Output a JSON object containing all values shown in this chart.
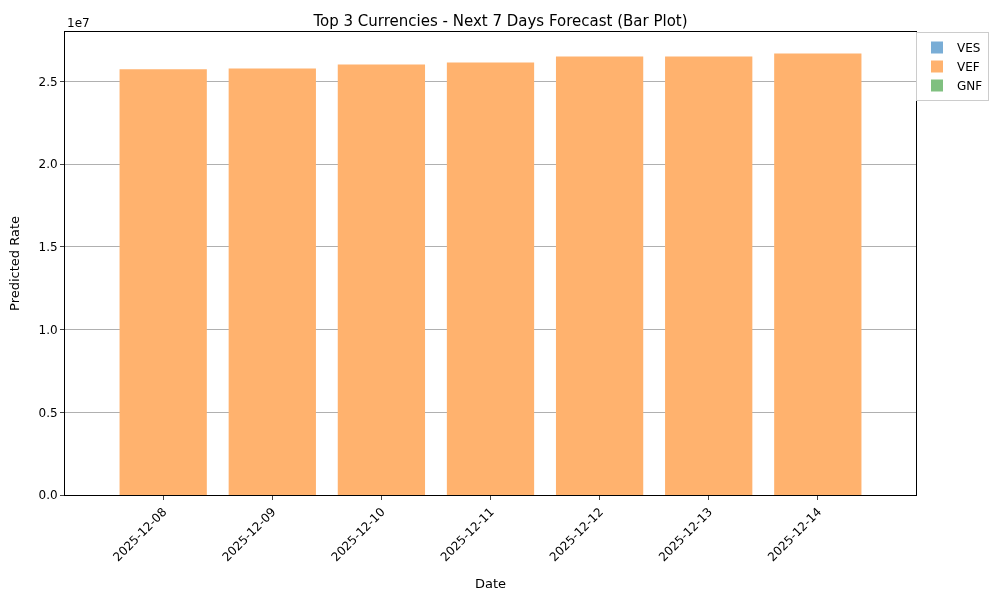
{
  "chart_data": {
    "type": "bar",
    "title": "Top 3 Currencies - Next 7 Days Forecast (Bar Plot)",
    "xlabel": "Date",
    "ylabel": "Predicted Rate",
    "categories": [
      "2025-12-08",
      "2025-12-09",
      "2025-12-10",
      "2025-12-11",
      "2025-12-12",
      "2025-12-13",
      "2025-12-14"
    ],
    "series": [
      {
        "name": "VES",
        "color": "#79add6",
        "values": [
          0,
          0,
          0,
          0,
          0,
          0,
          0
        ]
      },
      {
        "name": "VEF",
        "color": "#ffb26e",
        "values": [
          2.574,
          2.58,
          2.604,
          2.616,
          2.652,
          2.652,
          2.67
        ]
      },
      {
        "name": "GNF",
        "color": "#80c080",
        "values": [
          0,
          0,
          0,
          0,
          0,
          0,
          0
        ]
      }
    ],
    "ylim": [
      0,
      2.8
    ],
    "yticks": [
      {
        "value": 0,
        "label": "0.0"
      },
      0.5,
      {
        "value": 1,
        "label": "1.0"
      },
      1.5,
      {
        "value": 2,
        "label": "2.0"
      },
      2.5
    ],
    "annotations": [
      "1e7"
    ],
    "grid": "y",
    "legend": "top right"
  }
}
